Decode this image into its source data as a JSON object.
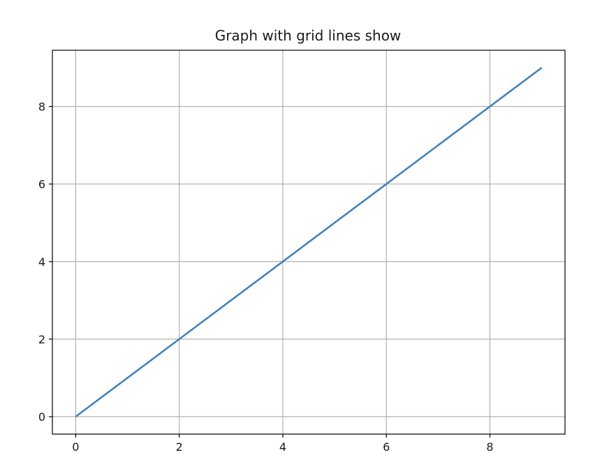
{
  "chart_data": {
    "type": "line",
    "title": "Graph with grid lines show",
    "xlabel": "",
    "ylabel": "",
    "x": [
      0,
      1,
      2,
      3,
      4,
      5,
      6,
      7,
      8,
      9
    ],
    "series": [
      {
        "values": [
          0,
          1,
          2,
          3,
          4,
          5,
          6,
          7,
          8,
          9
        ],
        "color": "#4682b4"
      }
    ],
    "xlim": [
      -0.45,
      9.45
    ],
    "ylim": [
      -0.45,
      9.45
    ],
    "xticks": [
      0,
      2,
      4,
      6,
      8
    ],
    "yticks": [
      0,
      2,
      4,
      6,
      8
    ],
    "grid": true,
    "legend": "none"
  }
}
